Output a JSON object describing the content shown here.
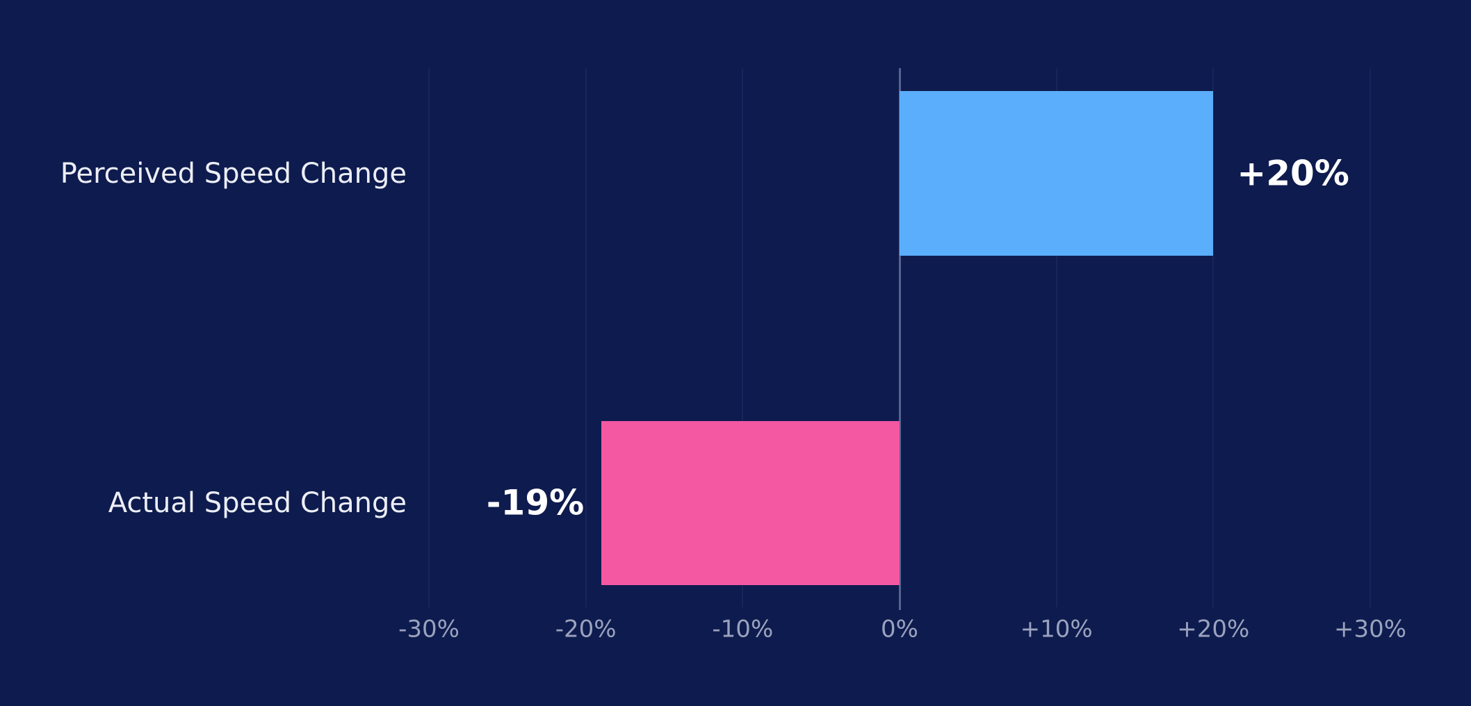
{
  "chart_data": {
    "type": "bar",
    "orientation": "horizontal",
    "title": "",
    "xlabel": "",
    "ylabel": "",
    "categories": [
      "Perceived Speed Change",
      "Actual Speed Change"
    ],
    "values": [
      20,
      -19
    ],
    "value_labels": [
      "+20%",
      "-19%"
    ],
    "bar_colors": [
      "#5aaefc",
      "#f558a3"
    ],
    "xlim": [
      -30,
      30
    ],
    "x_ticks": [
      -30,
      -20,
      -10,
      0,
      10,
      20,
      30
    ],
    "x_tick_labels": [
      "-30%",
      "-20%",
      "-10%",
      "0%",
      "+10%",
      "+20%",
      "+30%"
    ],
    "grid": "vertical-gridlines-at-ticks",
    "zero_line": true,
    "legend": "none"
  },
  "colors": {
    "background": "#0e1b4e",
    "gridline": "#17255a",
    "zero_axis": "#566390",
    "tick_label": "#9aa2bd",
    "category_label": "#eceef6",
    "value_label": "#ffffff",
    "bar_positive": "#5aaefc",
    "bar_negative": "#f558a3"
  }
}
